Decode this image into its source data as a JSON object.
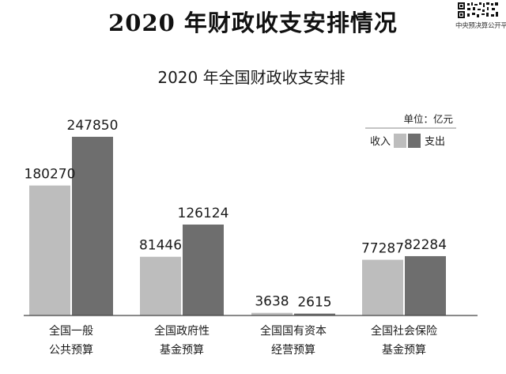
{
  "page": {
    "main_title": "2020 年财政收支安排情况",
    "qr_caption": "中央预决算公开平台"
  },
  "colors": {
    "income": "#bdbdbd",
    "expense": "#6e6e6e",
    "axis": "#444444",
    "text": "#1a1a1a"
  },
  "chart_data": {
    "type": "bar",
    "title": "2020 年全国财政收支安排",
    "unit": "单位：亿元",
    "legend_position": "top-right",
    "categories": [
      [
        "全国一般",
        "公共预算"
      ],
      [
        "全国政府性",
        "基金预算"
      ],
      [
        "全国国有资本",
        "经营预算"
      ],
      [
        "全国社会保险",
        "基金预算"
      ]
    ],
    "series": [
      {
        "name": "收入",
        "values": [
          180270,
          81446,
          3638,
          77287
        ]
      },
      {
        "name": "支出",
        "values": [
          247850,
          126124,
          2615,
          82284
        ]
      }
    ],
    "ylim": [
      0,
      250000
    ],
    "grid": false
  }
}
